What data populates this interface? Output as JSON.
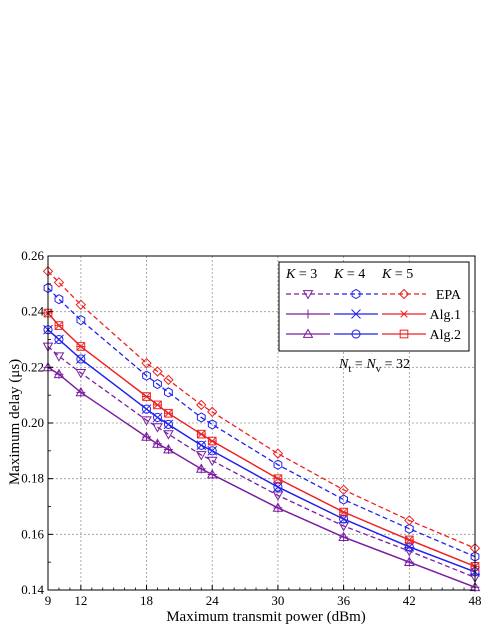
{
  "chart_data": {
    "type": "line",
    "xlabel": "Maximum transmit power (dBm)",
    "ylabel": "Maximum delay (μs)",
    "xlim": [
      9,
      48
    ],
    "ylim": [
      0.14,
      0.26
    ],
    "xticks": [
      9,
      12,
      18,
      24,
      30,
      36,
      42,
      48
    ],
    "yticks": [
      0.14,
      0.16,
      0.18,
      0.2,
      0.22,
      0.24,
      0.26
    ],
    "ytick_labels": [
      "0.14",
      "0.16",
      "0.18",
      "0.20",
      "0.22",
      "0.24",
      "0.26"
    ],
    "grid": true,
    "legend": {
      "position": "top-right",
      "headers": [
        {
          "sym": "K",
          "eq": " = 3"
        },
        {
          "sym": "K",
          "eq": " = 4"
        },
        {
          "sym": "K",
          "eq": " = 5"
        }
      ],
      "rows": [
        "EPA",
        "Alg.1",
        "Alg.2"
      ]
    },
    "annotation": {
      "n1": "N",
      "s1": "t",
      "eq1": " = ",
      "n2": "N",
      "s2": "v",
      "eq2": " = 32"
    },
    "colors": {
      "K3": "#7B1FA2",
      "K4": "#2222EE",
      "K5": "#EE2222"
    },
    "series": [
      {
        "name": "EPA, K = 3",
        "group": "K3",
        "alg": "EPA",
        "marker": "tri-down",
        "x": [
          9,
          10,
          12,
          18,
          19,
          20,
          23,
          24,
          30,
          36,
          42,
          48
        ],
        "y": [
          0.2275,
          0.224,
          0.218,
          0.201,
          0.1985,
          0.196,
          0.1885,
          0.1865,
          0.174,
          0.163,
          0.154,
          0.1445
        ]
      },
      {
        "name": "EPA, K = 4",
        "group": "K4",
        "alg": "EPA",
        "marker": "hexagon",
        "x": [
          9,
          10,
          12,
          18,
          19,
          20,
          23,
          24,
          30,
          36,
          42,
          48
        ],
        "y": [
          0.2485,
          0.2445,
          0.237,
          0.217,
          0.214,
          0.211,
          0.202,
          0.1995,
          0.185,
          0.1725,
          0.162,
          0.152
        ]
      },
      {
        "name": "EPA, K = 5",
        "group": "K5",
        "alg": "EPA",
        "marker": "diamond",
        "x": [
          9,
          10,
          12,
          18,
          19,
          20,
          23,
          24,
          30,
          36,
          42,
          48
        ],
        "y": [
          0.2545,
          0.2505,
          0.2425,
          0.2215,
          0.2185,
          0.2155,
          0.2065,
          0.204,
          0.189,
          0.176,
          0.165,
          0.155
        ]
      },
      {
        "name": "Alg.1, K = 3",
        "group": "K3",
        "alg": "Alg.1",
        "marker": "plus",
        "x": [
          9,
          10,
          12,
          18,
          19,
          20,
          23,
          24,
          30,
          36,
          42,
          48
        ],
        "y": [
          0.22,
          0.2175,
          0.211,
          0.195,
          0.1925,
          0.1905,
          0.1835,
          0.1815,
          0.1695,
          0.159,
          0.15,
          0.141
        ]
      },
      {
        "name": "Alg.1, K = 4",
        "group": "K4",
        "alg": "Alg.1",
        "marker": "x",
        "x": [
          9,
          10,
          12,
          18,
          19,
          20,
          23,
          24,
          30,
          36,
          42,
          48
        ],
        "y": [
          0.2335,
          0.23,
          0.223,
          0.205,
          0.202,
          0.1995,
          0.192,
          0.19,
          0.177,
          0.1655,
          0.1555,
          0.1465
        ]
      },
      {
        "name": "Alg.1, K = 5",
        "group": "K5",
        "alg": "Alg.1",
        "marker": "star",
        "x": [
          9,
          10,
          12,
          18,
          19,
          20,
          23,
          24,
          30,
          36,
          42,
          48
        ],
        "y": [
          0.2395,
          0.235,
          0.2275,
          0.2095,
          0.2065,
          0.2035,
          0.196,
          0.1935,
          0.18,
          0.168,
          0.158,
          0.1485
        ]
      },
      {
        "name": "Alg.2, K = 3",
        "group": "K3",
        "alg": "Alg.2",
        "marker": "triangle",
        "x": [
          9,
          10,
          12,
          18,
          19,
          20,
          23,
          24,
          30,
          36,
          42,
          48
        ],
        "y": [
          0.22,
          0.2175,
          0.211,
          0.195,
          0.1925,
          0.1905,
          0.1835,
          0.1815,
          0.1695,
          0.159,
          0.15,
          0.141
        ]
      },
      {
        "name": "Alg.2, K = 4",
        "group": "K4",
        "alg": "Alg.2",
        "marker": "circle",
        "x": [
          9,
          10,
          12,
          18,
          19,
          20,
          23,
          24,
          30,
          36,
          42,
          48
        ],
        "y": [
          0.2335,
          0.23,
          0.223,
          0.205,
          0.202,
          0.1995,
          0.192,
          0.19,
          0.177,
          0.1655,
          0.1555,
          0.1465
        ]
      },
      {
        "name": "Alg.2, K = 5",
        "group": "K5",
        "alg": "Alg.2",
        "marker": "square",
        "x": [
          9,
          10,
          12,
          18,
          19,
          20,
          23,
          24,
          30,
          36,
          42,
          48
        ],
        "y": [
          0.2395,
          0.235,
          0.2275,
          0.2095,
          0.2065,
          0.2035,
          0.196,
          0.1935,
          0.18,
          0.168,
          0.158,
          0.1485
        ]
      }
    ]
  }
}
